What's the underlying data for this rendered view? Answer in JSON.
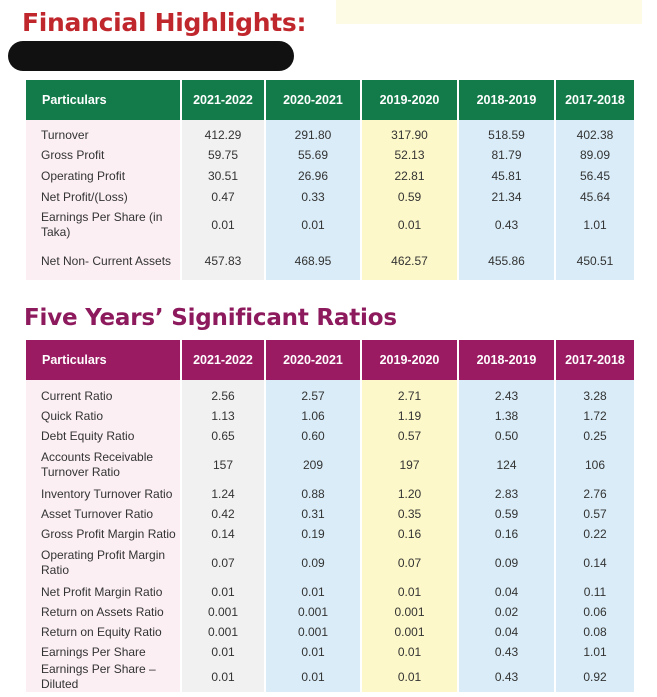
{
  "financial": {
    "title": "Financial Highlights:",
    "headers": [
      "Particulars",
      "2021-2022",
      "2020-2021",
      "2019-2020",
      "2018-2019",
      "2017-2018"
    ],
    "rows": [
      [
        "Turnover",
        "412.29",
        "291.80",
        "317.90",
        "518.59",
        "402.38"
      ],
      [
        "Gross Profit",
        "59.75",
        "55.69",
        "52.13",
        "81.79",
        "89.09"
      ],
      [
        "Operating Profit",
        "30.51",
        "26.96",
        "22.81",
        "45.81",
        "56.45"
      ],
      [
        "Net Profit/(Loss)",
        "0.47",
        "0.33",
        "0.59",
        "21.34",
        "45.64"
      ],
      [
        "Earnings Per Share (in Taka)",
        "0.01",
        "0.01",
        "0.01",
        "0.43",
        "1.01"
      ],
      [
        "Net Non- Current Assets",
        "457.83",
        "468.95",
        "462.57",
        "455.86",
        "450.51"
      ]
    ]
  },
  "ratios": {
    "title": "Five Years’ Significant Ratios",
    "headers": [
      "Particulars",
      "2021-2022",
      "2020-2021",
      "2019-2020",
      "2018-2019",
      "2017-2018"
    ],
    "rows": [
      [
        "Current Ratio",
        "2.56",
        "2.57",
        "2.71",
        "2.43",
        "3.28"
      ],
      [
        "Quick Ratio",
        "1.13",
        "1.06",
        "1.19",
        "1.38",
        "1.72"
      ],
      [
        "Debt Equity Ratio",
        "0.65",
        "0.60",
        "0.57",
        "0.50",
        "0.25"
      ],
      [
        "Accounts Receivable Turnover Ratio",
        "157",
        "209",
        "197",
        "124",
        "106"
      ],
      [
        "Inventory Turnover Ratio",
        "1.24",
        "0.88",
        "1.20",
        "2.83",
        "2.76"
      ],
      [
        "Asset Turnover Ratio",
        "0.42",
        "0.31",
        "0.35",
        "0.59",
        "0.57"
      ],
      [
        "Gross Profit Margin Ratio",
        "0.14",
        "0.19",
        "0.16",
        "0.16",
        "0.22"
      ],
      [
        "Operating Profit Margin Ratio",
        "0.07",
        "0.09",
        "0.07",
        "0.09",
        "0.14"
      ],
      [
        "Net Profit Margin Ratio",
        "0.01",
        "0.01",
        "0.01",
        "0.04",
        "0.11"
      ],
      [
        "Return on Assets Ratio",
        "0.001",
        "0.001",
        "0.001",
        "0.02",
        "0.06"
      ],
      [
        "Return on Equity Ratio",
        "0.001",
        "0.001",
        "0.001",
        "0.04",
        "0.08"
      ],
      [
        "Earnings Per Share",
        "0.01",
        "0.01",
        "0.01",
        "0.43",
        "1.01"
      ],
      [
        "Earnings Per Share – Diluted",
        "0.01",
        "0.01",
        "0.01",
        "0.43",
        "0.92"
      ]
    ]
  }
}
